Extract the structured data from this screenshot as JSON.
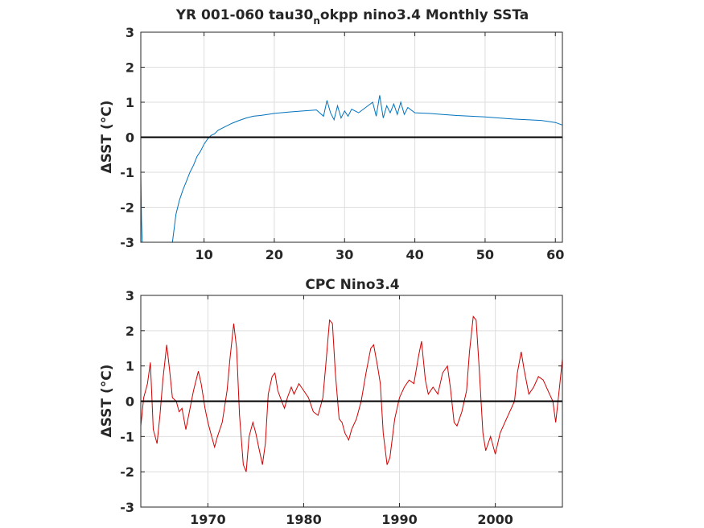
{
  "chart_data": [
    {
      "type": "line",
      "title_main": "YR 001-060 tau30",
      "title_sub": "n",
      "title_rest": "okpp nino3.4 Monthly SSTa",
      "xlabel": "",
      "ylabel": "ΔSST (°C)",
      "xlim": [
        1,
        61
      ],
      "ylim": [
        -3,
        3
      ],
      "xticks": [
        10,
        20,
        30,
        40,
        50,
        60
      ],
      "xtick_labels": [
        "10",
        "20",
        "30",
        "40",
        "50",
        "60"
      ],
      "yticks": [
        -3,
        -2,
        -1,
        0,
        1,
        2,
        3
      ],
      "ytick_labels": [
        "-3",
        "-2",
        "-1",
        "0",
        "1",
        "2",
        "3"
      ],
      "grid": true,
      "zero_line": true,
      "series": [
        {
          "color": "#0072bd",
          "x": [
            1,
            1.1,
            1.2,
            5.5,
            6.0,
            6.5,
            7.0,
            7.5,
            8.0,
            8.5,
            9.0,
            9.5,
            10.0,
            10.5,
            11.0,
            11.5,
            12.0,
            13.0,
            14.0,
            15.0,
            16.0,
            17.0,
            18.0,
            19.0,
            20.0,
            22.0,
            24.0,
            26.0,
            27.0,
            27.5,
            28.0,
            28.5,
            29.0,
            29.5,
            30.0,
            30.5,
            31.0,
            32.0,
            33.0,
            34.0,
            34.5,
            35.0,
            35.5,
            36.0,
            36.5,
            37.0,
            37.5,
            38.0,
            38.5,
            39.0,
            40.0,
            42.0,
            44.0,
            46.0,
            48.0,
            50.0,
            52.0,
            54.0,
            56.0,
            58.0,
            60.0,
            61.0
          ],
          "values": [
            -1.0,
            -2.4,
            -3.0,
            -3.0,
            -2.2,
            -1.8,
            -1.5,
            -1.25,
            -1.0,
            -0.8,
            -0.55,
            -0.4,
            -0.2,
            -0.05,
            0.05,
            0.1,
            0.2,
            0.3,
            0.4,
            0.48,
            0.55,
            0.6,
            0.62,
            0.65,
            0.68,
            0.72,
            0.75,
            0.78,
            0.6,
            1.05,
            0.7,
            0.5,
            0.9,
            0.55,
            0.75,
            0.6,
            0.8,
            0.7,
            0.85,
            1.0,
            0.6,
            1.2,
            0.55,
            0.9,
            0.7,
            0.95,
            0.65,
            1.0,
            0.65,
            0.85,
            0.7,
            0.68,
            0.65,
            0.62,
            0.6,
            0.58,
            0.55,
            0.52,
            0.5,
            0.48,
            0.42,
            0.35
          ]
        }
      ]
    },
    {
      "type": "line",
      "title": "CPC Nino3.4",
      "xlabel": "",
      "ylabel": "ΔSST (°C)",
      "xlim": [
        1963,
        2007
      ],
      "ylim": [
        -3,
        3
      ],
      "xticks": [
        1970,
        1980,
        1990,
        2000
      ],
      "xtick_labels": [
        "1970",
        "1980",
        "1990",
        "2000"
      ],
      "yticks": [
        -3,
        -2,
        -1,
        0,
        1,
        2,
        3
      ],
      "ytick_labels": [
        "-3",
        "-2",
        "-1",
        "0",
        "1",
        "2",
        "3"
      ],
      "grid": true,
      "zero_line": true,
      "series": [
        {
          "color": "#d00000",
          "x": [
            1963.0,
            1963.3,
            1963.7,
            1964.0,
            1964.3,
            1964.7,
            1965.0,
            1965.3,
            1965.7,
            1966.0,
            1966.3,
            1966.7,
            1967.0,
            1967.3,
            1967.7,
            1968.0,
            1968.5,
            1969.0,
            1969.3,
            1969.7,
            1970.0,
            1970.3,
            1970.7,
            1971.0,
            1971.5,
            1972.0,
            1972.3,
            1972.7,
            1973.0,
            1973.3,
            1973.7,
            1974.0,
            1974.3,
            1974.7,
            1975.0,
            1975.3,
            1975.7,
            1976.0,
            1976.3,
            1976.7,
            1977.0,
            1977.3,
            1977.7,
            1978.0,
            1978.3,
            1978.7,
            1979.0,
            1979.5,
            1980.0,
            1980.5,
            1981.0,
            1981.5,
            1982.0,
            1982.3,
            1982.7,
            1983.0,
            1983.3,
            1983.7,
            1984.0,
            1984.3,
            1984.7,
            1985.0,
            1985.5,
            1986.0,
            1986.5,
            1987.0,
            1987.3,
            1987.7,
            1988.0,
            1988.3,
            1988.7,
            1989.0,
            1989.5,
            1990.0,
            1990.5,
            1991.0,
            1991.5,
            1992.0,
            1992.3,
            1992.7,
            1993.0,
            1993.5,
            1994.0,
            1994.5,
            1995.0,
            1995.3,
            1995.7,
            1996.0,
            1996.5,
            1997.0,
            1997.3,
            1997.7,
            1998.0,
            1998.3,
            1998.7,
            1999.0,
            1999.5,
            2000.0,
            2000.5,
            2001.0,
            2001.5,
            2002.0,
            2002.3,
            2002.7,
            2003.0,
            2003.5,
            2004.0,
            2004.5,
            2005.0,
            2005.5,
            2006.0,
            2006.3,
            2006.7,
            2007.0
          ],
          "values": [
            -0.7,
            0.1,
            0.5,
            1.1,
            -0.8,
            -1.2,
            -0.4,
            0.6,
            1.6,
            0.9,
            0.1,
            0.0,
            -0.3,
            -0.2,
            -0.8,
            -0.4,
            0.3,
            0.85,
            0.5,
            -0.2,
            -0.6,
            -0.9,
            -1.3,
            -1.0,
            -0.6,
            0.3,
            1.2,
            2.2,
            1.5,
            -0.4,
            -1.8,
            -2.0,
            -1.0,
            -0.6,
            -0.9,
            -1.3,
            -1.8,
            -1.2,
            0.2,
            0.7,
            0.8,
            0.3,
            0.0,
            -0.2,
            0.1,
            0.4,
            0.2,
            0.5,
            0.3,
            0.1,
            -0.3,
            -0.4,
            0.1,
            1.0,
            2.3,
            2.2,
            0.8,
            -0.5,
            -0.6,
            -0.9,
            -1.1,
            -0.8,
            -0.5,
            0.0,
            0.8,
            1.5,
            1.6,
            1.0,
            0.5,
            -0.9,
            -1.8,
            -1.6,
            -0.5,
            0.1,
            0.4,
            0.6,
            0.5,
            1.3,
            1.7,
            0.6,
            0.2,
            0.4,
            0.2,
            0.8,
            1.0,
            0.4,
            -0.6,
            -0.7,
            -0.3,
            0.3,
            1.4,
            2.4,
            2.3,
            1.0,
            -0.9,
            -1.4,
            -1.0,
            -1.5,
            -0.9,
            -0.6,
            -0.3,
            0.0,
            0.8,
            1.4,
            0.9,
            0.2,
            0.4,
            0.7,
            0.6,
            0.3,
            0.0,
            -0.6,
            0.4,
            1.2
          ]
        }
      ]
    }
  ]
}
